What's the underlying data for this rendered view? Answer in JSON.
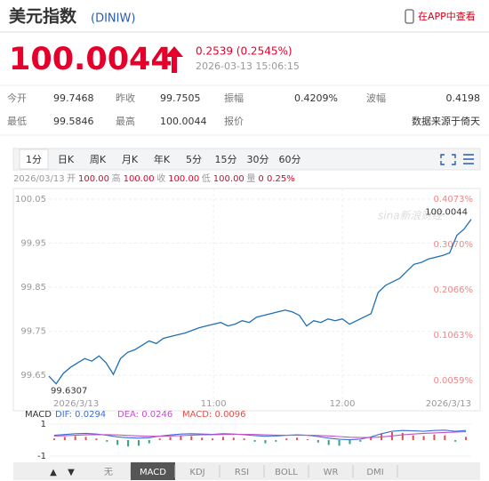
{
  "header": {
    "title": "美元指数",
    "code": "(DINIW)",
    "app_link": "在APP中查看"
  },
  "quote": {
    "price": "100.0044",
    "change": "0.2539 (0.2545%)",
    "time": "2026-03-13 15:06:15"
  },
  "stats": [
    [
      {
        "label": "今开",
        "value": "99.7468"
      },
      {
        "label": "昨收",
        "value": "99.7505"
      },
      {
        "label": "振幅",
        "value": "0.4209%"
      },
      {
        "label": "波幅",
        "value": "0.4198"
      }
    ],
    [
      {
        "label": "最低",
        "value": "99.5846"
      },
      {
        "label": "最高",
        "value": "100.0044"
      },
      {
        "label": "报价"
      },
      {
        "value": "数据来源于倚天"
      }
    ]
  ],
  "period_tabs": [
    "1分",
    "日K",
    "周K",
    "月K",
    "年K",
    "5分",
    "15分",
    "30分",
    "60分"
  ],
  "selected_period_tab": 0,
  "info_bar": {
    "date": "2026/03/13",
    "fields": [
      {
        "label": "开",
        "value": "100.00"
      },
      {
        "label": "高",
        "value": "100.00"
      },
      {
        "label": "收",
        "value": "100.00"
      },
      {
        "label": "低",
        "value": "100.00"
      },
      {
        "label": "量",
        "value": "0"
      }
    ],
    "change": "0.25%"
  },
  "chart_data": {
    "type": "line",
    "color": "#1e6fb4",
    "watermark": "sina新浪财经",
    "categories": [
      "2026/3/13",
      null,
      null,
      null,
      null,
      null,
      null,
      null,
      null,
      null,
      null,
      null,
      null,
      null,
      null,
      null,
      null,
      null,
      null,
      null,
      null,
      null,
      null,
      "11:00",
      null,
      null,
      null,
      null,
      null,
      null,
      null,
      null,
      null,
      null,
      null,
      null,
      null,
      null,
      null,
      null,
      null,
      "12:00",
      null,
      null,
      null,
      null,
      null,
      null,
      null,
      null,
      null,
      null,
      null,
      null,
      null,
      null,
      null,
      null,
      null,
      "2026/3/13"
    ],
    "values": [
      99.648,
      99.6307,
      99.654,
      99.668,
      99.678,
      99.688,
      99.682,
      99.694,
      99.678,
      99.652,
      99.688,
      99.702,
      99.708,
      99.718,
      99.728,
      99.722,
      99.734,
      99.738,
      99.742,
      99.746,
      99.752,
      99.758,
      99.762,
      99.766,
      99.77,
      99.762,
      99.766,
      99.774,
      99.77,
      99.782,
      99.786,
      99.79,
      99.794,
      99.798,
      99.794,
      99.786,
      99.762,
      99.774,
      99.77,
      99.778,
      99.774,
      99.778,
      99.766,
      99.774,
      99.782,
      99.79,
      99.838,
      99.854,
      99.862,
      99.87,
      99.886,
      99.902,
      99.906,
      99.914,
      99.918,
      99.922,
      99.928,
      99.968,
      99.982,
      100.0044
    ],
    "annotations": [
      "100.0044",
      "99.6307"
    ],
    "ylim": [
      99.63,
      100.05
    ],
    "yticks": [
      100.05,
      99.95,
      99.85,
      99.75,
      99.65
    ],
    "y2lim": [
      -0.002,
      0.4073
    ],
    "y2ticks": [
      {
        "value": 0.4073,
        "label": "0.4073%"
      },
      {
        "value": 0.307,
        "label": "0.3070%"
      },
      {
        "value": 0.2066,
        "label": "0.2066%"
      },
      {
        "value": 0.1063,
        "label": "0.1063%"
      },
      {
        "value": 0.0059,
        "label": "0.0059%"
      }
    ],
    "grid": true
  },
  "macd": {
    "label": "MACD",
    "dif_label": "DIF: 0.0294",
    "dea_label": "DEA: 0.0246",
    "macd_label": "MACD: 0.0096",
    "ylim": [
      -1,
      1
    ],
    "yticks": [
      1,
      -1
    ],
    "dif_color": "#3b6fd8",
    "dea_color": "#c44fc9",
    "up_color": "#d9534f",
    "down_color": "#2aa876",
    "dif": [
      0.3,
      0.35,
      0.4,
      0.42,
      0.38,
      0.3,
      0.2,
      0.15,
      0.12,
      0.15,
      0.25,
      0.32,
      0.38,
      0.4,
      0.38,
      0.36,
      0.4,
      0.38,
      0.34,
      0.28,
      0.24,
      0.25,
      0.3,
      0.33,
      0.3,
      0.22,
      0.12,
      0.05,
      0.02,
      0.06,
      0.2,
      0.4,
      0.55,
      0.6,
      0.58,
      0.55,
      0.6,
      0.62,
      0.55,
      0.6
    ],
    "dea": [
      0.25,
      0.27,
      0.3,
      0.33,
      0.34,
      0.34,
      0.32,
      0.29,
      0.26,
      0.24,
      0.24,
      0.26,
      0.28,
      0.31,
      0.33,
      0.34,
      0.35,
      0.36,
      0.36,
      0.35,
      0.33,
      0.31,
      0.3,
      0.3,
      0.3,
      0.29,
      0.26,
      0.22,
      0.18,
      0.16,
      0.16,
      0.2,
      0.26,
      0.33,
      0.38,
      0.42,
      0.45,
      0.48,
      0.5,
      0.52
    ],
    "histogram": [
      0.1,
      0.2,
      0.25,
      0.2,
      0.1,
      -0.1,
      -0.3,
      -0.4,
      -0.35,
      -0.2,
      0.1,
      0.2,
      0.3,
      0.25,
      0.15,
      0.1,
      0.2,
      0.15,
      0.1,
      -0.1,
      -0.2,
      -0.1,
      0.1,
      0.15,
      0.05,
      -0.15,
      -0.3,
      -0.35,
      -0.25,
      -0.1,
      0.2,
      0.4,
      0.5,
      0.45,
      0.3,
      0.25,
      0.35,
      0.3,
      -0.1,
      0.2
    ]
  },
  "indicator_tabs": [
    "▲",
    "▼",
    "无",
    "MACD",
    "KDJ",
    "RSI",
    "BOLL",
    "WR",
    "DMI"
  ],
  "selected_indicator_tab": 3
}
